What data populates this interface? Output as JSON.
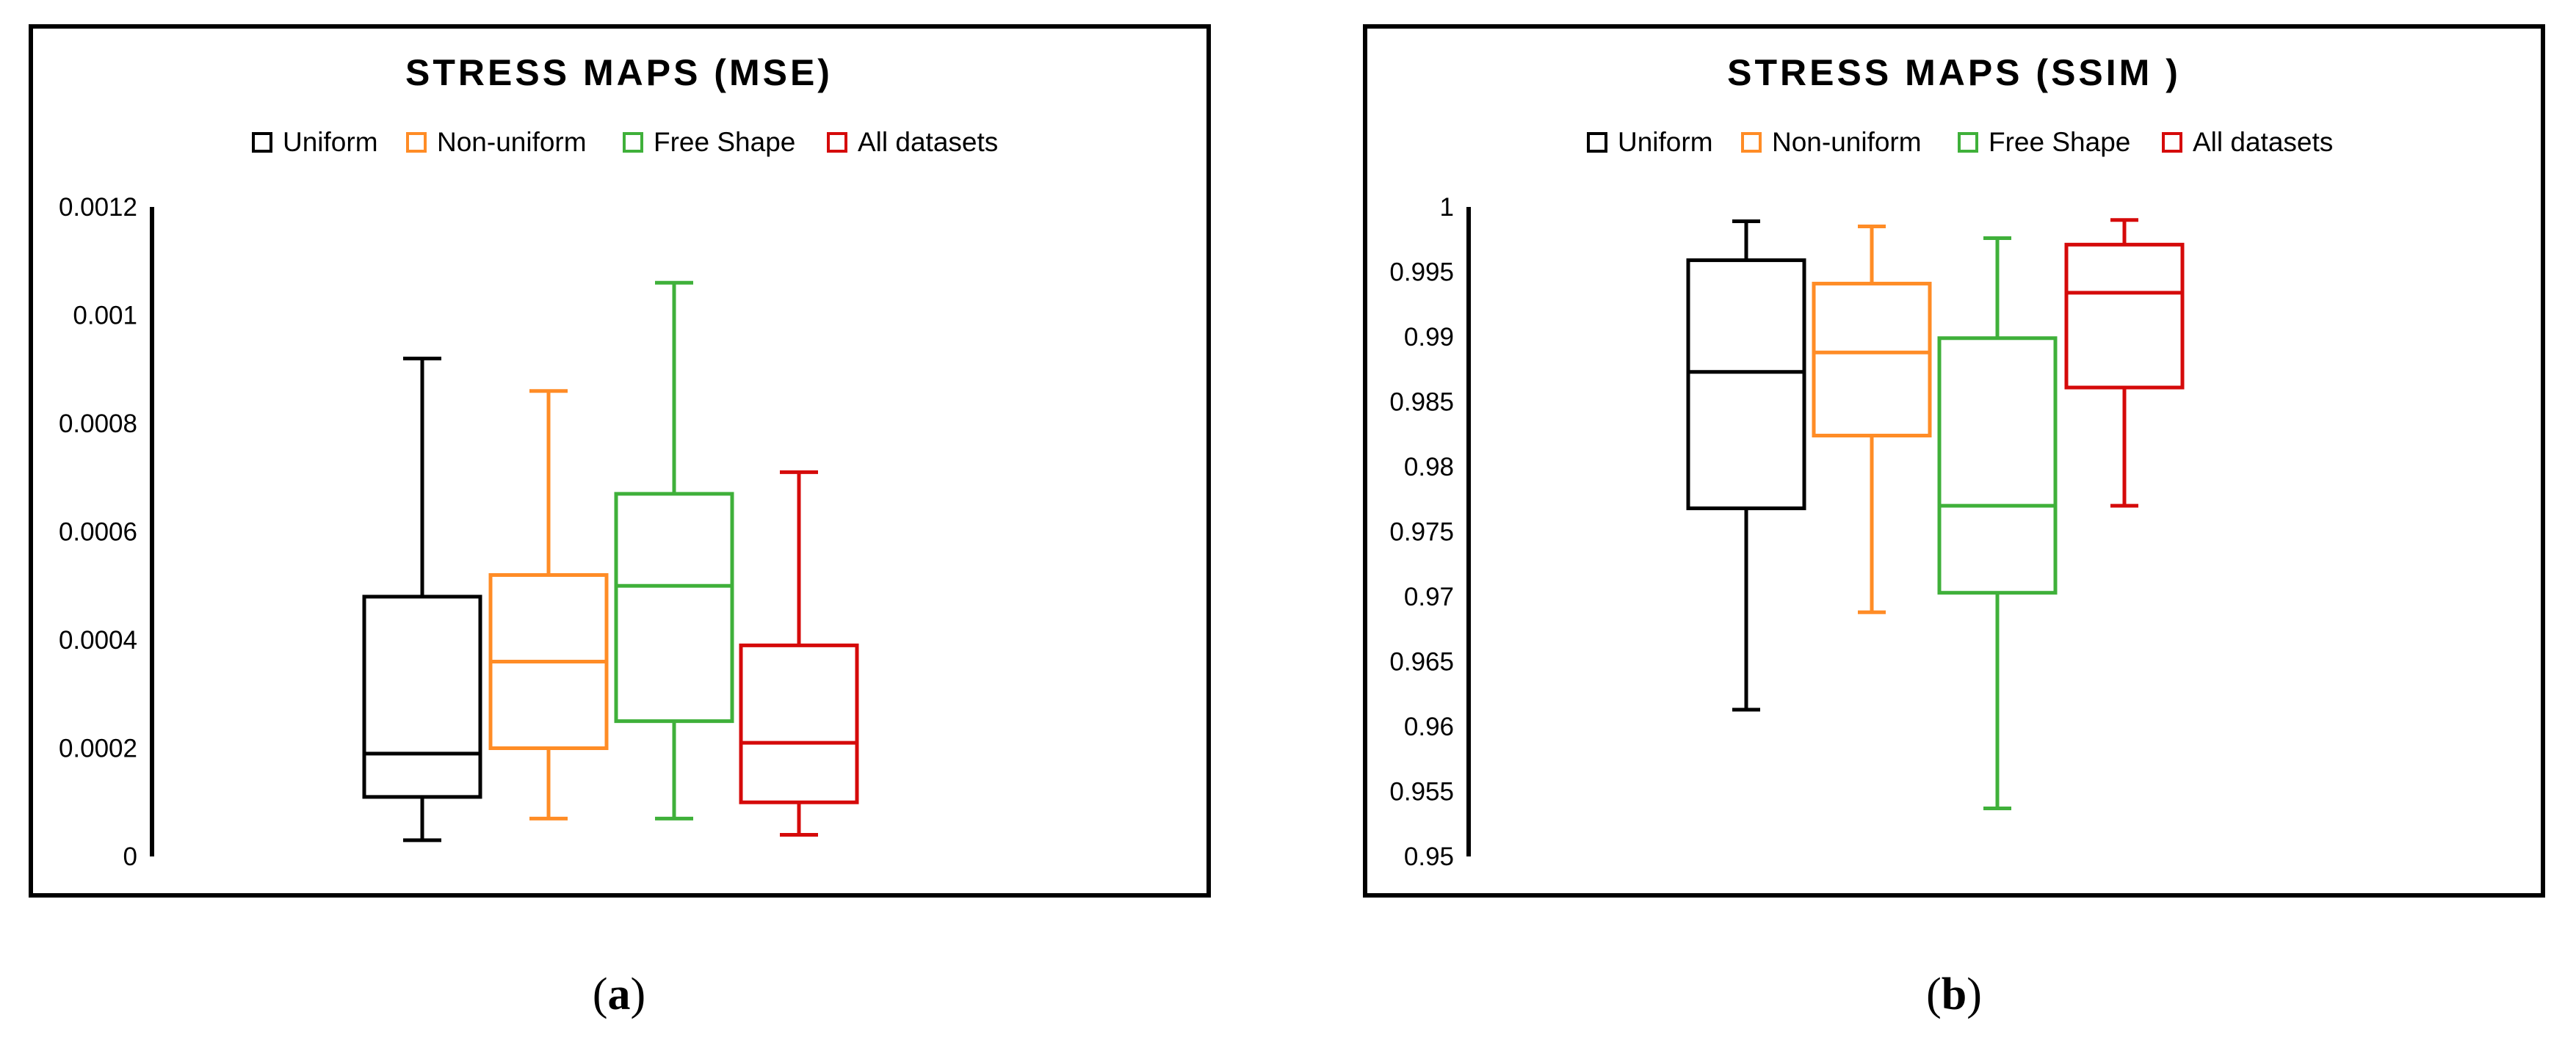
{
  "colors": {
    "uniform": "#000000",
    "non_uniform": "#ff8c26",
    "free_shape": "#3fb03a",
    "all_datasets": "#d50a0a",
    "frame": "#000000"
  },
  "chart_data": [
    {
      "type": "boxplot",
      "title": "STRESS MAPS (MSE)",
      "caption_letter": "a",
      "legend_placement": "top",
      "grid": false,
      "ylim": [
        0,
        0.0012
      ],
      "yticks": [
        "0",
        "0.0002",
        "0.0004",
        "0.0006",
        "0.0008",
        "0.001",
        "0.0012"
      ],
      "series": [
        {
          "name": "Uniform",
          "color_key": "uniform",
          "min": 3e-05,
          "q1": 0.00011,
          "median": 0.00019,
          "q3": 0.00048,
          "max": 0.00092
        },
        {
          "name": "Non-uniform",
          "color_key": "non_uniform",
          "min": 7e-05,
          "q1": 0.0002,
          "median": 0.00036,
          "q3": 0.00052,
          "max": 0.00086
        },
        {
          "name": "Free Shape",
          "color_key": "free_shape",
          "min": 7e-05,
          "q1": 0.00025,
          "median": 0.0005,
          "q3": 0.00067,
          "max": 0.00106
        },
        {
          "name": "All datasets",
          "color_key": "all_datasets",
          "min": 4e-05,
          "q1": 0.0001,
          "median": 0.00021,
          "q3": 0.00039,
          "max": 0.00071
        }
      ]
    },
    {
      "type": "boxplot",
      "title": "STRESS MAPS (SSIM )",
      "caption_letter": "b",
      "legend_placement": "top",
      "grid": false,
      "ylim": [
        0.95,
        1
      ],
      "yticks": [
        "0.95",
        "0.955",
        "0.96",
        "0.965",
        "0.97",
        "0.975",
        "0.98",
        "0.985",
        "0.99",
        "0.995",
        "1"
      ],
      "series": [
        {
          "name": "Uniform",
          "color_key": "uniform",
          "min": 0.9613,
          "q1": 0.9768,
          "median": 0.9873,
          "q3": 0.9959,
          "max": 0.9989
        },
        {
          "name": "Non-uniform",
          "color_key": "non_uniform",
          "min": 0.9688,
          "q1": 0.9824,
          "median": 0.9888,
          "q3": 0.9941,
          "max": 0.9985
        },
        {
          "name": "Free Shape",
          "color_key": "free_shape",
          "min": 0.9537,
          "q1": 0.9703,
          "median": 0.977,
          "q3": 0.9899,
          "max": 0.9976
        },
        {
          "name": "All datasets",
          "color_key": "all_datasets",
          "min": 0.977,
          "q1": 0.9861,
          "median": 0.9934,
          "q3": 0.9971,
          "max": 0.999
        }
      ]
    }
  ]
}
